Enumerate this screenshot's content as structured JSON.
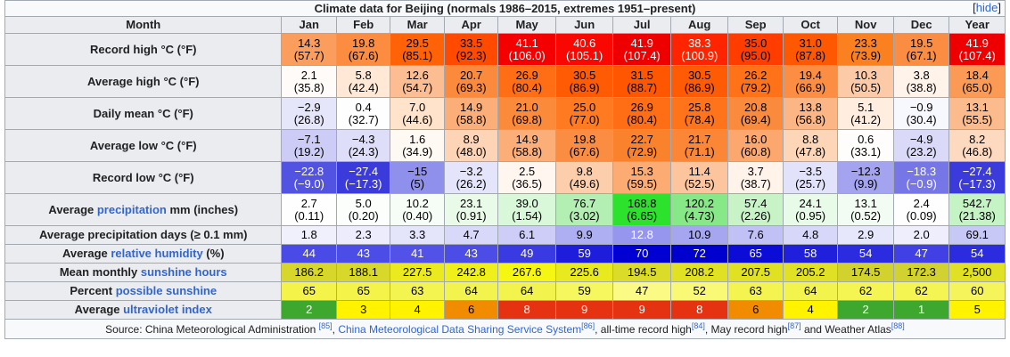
{
  "caption": "Climate data for Beijing (normals 1986–2015, extremes 1951–present)",
  "hide_label": "hide",
  "header": {
    "month_label": "Month",
    "months": [
      "Jan",
      "Feb",
      "Mar",
      "Apr",
      "May",
      "Jun",
      "Jul",
      "Aug",
      "Sep",
      "Oct",
      "Nov",
      "Dec",
      "Year"
    ]
  },
  "rows": [
    {
      "label": "Record high °C (°F)",
      "lines": 2,
      "cells": [
        {
          "a": "14.3",
          "b": "(57.7)",
          "bg": "#fb9d5d",
          "fg": "#000000"
        },
        {
          "a": "19.8",
          "b": "(67.6)",
          "bg": "#fb8c40",
          "fg": "#000000"
        },
        {
          "a": "29.5",
          "b": "(85.1)",
          "bg": "#ff6207",
          "fg": "#000000"
        },
        {
          "a": "33.5",
          "b": "(92.3)",
          "bg": "#ff4a00",
          "fg": "#000000"
        },
        {
          "a": "41.1",
          "b": "(106.0)",
          "bg": "#f40000",
          "fg": "#ffffff"
        },
        {
          "a": "40.6",
          "b": "(105.1)",
          "bg": "#f80800",
          "fg": "#ffffff"
        },
        {
          "a": "41.9",
          "b": "(107.4)",
          "bg": "#ef0000",
          "fg": "#ffffff"
        },
        {
          "a": "38.3",
          "b": "(100.9)",
          "bg": "#ff2400",
          "fg": "#ffffff"
        },
        {
          "a": "35.0",
          "b": "(95.0)",
          "bg": "#ff3d00",
          "fg": "#000000"
        },
        {
          "a": "31.0",
          "b": "(87.8)",
          "bg": "#ff5802",
          "fg": "#000000"
        },
        {
          "a": "23.3",
          "b": "(73.9)",
          "bg": "#fb8020",
          "fg": "#000000"
        },
        {
          "a": "19.5",
          "b": "(67.1)",
          "bg": "#fb8d42",
          "fg": "#000000"
        },
        {
          "a": "41.9",
          "b": "(107.4)",
          "bg": "#ef0000",
          "fg": "#ffffff"
        }
      ]
    },
    {
      "label": "Average high °C (°F)",
      "lines": 2,
      "cells": [
        {
          "a": "2.1",
          "b": "(35.8)",
          "bg": "#fffbf8",
          "fg": "#000000"
        },
        {
          "a": "5.8",
          "b": "(42.4)",
          "bg": "#ffe9d6",
          "fg": "#000000"
        },
        {
          "a": "12.6",
          "b": "(54.7)",
          "bg": "#fcbd92",
          "fg": "#000000"
        },
        {
          "a": "20.7",
          "b": "(69.3)",
          "bg": "#fb8a3c",
          "fg": "#000000"
        },
        {
          "a": "26.9",
          "b": "(80.4)",
          "bg": "#ff6e15",
          "fg": "#000000"
        },
        {
          "a": "30.5",
          "b": "(86.9)",
          "bg": "#ff5a04",
          "fg": "#000000"
        },
        {
          "a": "31.5",
          "b": "(88.7)",
          "bg": "#ff5602",
          "fg": "#000000"
        },
        {
          "a": "30.5",
          "b": "(86.9)",
          "bg": "#ff5a04",
          "fg": "#000000"
        },
        {
          "a": "26.2",
          "b": "(79.2)",
          "bg": "#ff7218",
          "fg": "#000000"
        },
        {
          "a": "19.4",
          "b": "(66.9)",
          "bg": "#fb8e43",
          "fg": "#000000"
        },
        {
          "a": "10.3",
          "b": "(50.5)",
          "bg": "#fdcaa7",
          "fg": "#000000"
        },
        {
          "a": "3.8",
          "b": "(38.8)",
          "bg": "#fff3ea",
          "fg": "#000000"
        },
        {
          "a": "18.4",
          "b": "(65.0)",
          "bg": "#fb9a55",
          "fg": "#000000"
        }
      ]
    },
    {
      "label": "Daily mean °C (°F)",
      "lines": 2,
      "cells": [
        {
          "a": "−2.9",
          "b": "(26.8)",
          "bg": "#e6e6fb",
          "fg": "#000000"
        },
        {
          "a": "0.4",
          "b": "(32.7)",
          "bg": "#fefefe",
          "fg": "#000000"
        },
        {
          "a": "7.0",
          "b": "(44.6)",
          "bg": "#ffe3ca",
          "fg": "#000000"
        },
        {
          "a": "14.9",
          "b": "(58.8)",
          "bg": "#fcae78",
          "fg": "#000000"
        },
        {
          "a": "21.0",
          "b": "(69.8)",
          "bg": "#fb8a3b",
          "fg": "#000000"
        },
        {
          "a": "25.0",
          "b": "(77.0)",
          "bg": "#ff7a20",
          "fg": "#000000"
        },
        {
          "a": "26.9",
          "b": "(80.4)",
          "bg": "#ff6e15",
          "fg": "#000000"
        },
        {
          "a": "25.8",
          "b": "(78.4)",
          "bg": "#ff741a",
          "fg": "#000000"
        },
        {
          "a": "20.8",
          "b": "(69.4)",
          "bg": "#fb8b3c",
          "fg": "#000000"
        },
        {
          "a": "13.8",
          "b": "(56.8)",
          "bg": "#fcb584",
          "fg": "#000000"
        },
        {
          "a": "5.1",
          "b": "(41.2)",
          "bg": "#ffeddf",
          "fg": "#000000"
        },
        {
          "a": "−0.9",
          "b": "(30.4)",
          "bg": "#f7f7fe",
          "fg": "#000000"
        },
        {
          "a": "13.1",
          "b": "(55.5)",
          "bg": "#fcbb8d",
          "fg": "#000000"
        }
      ]
    },
    {
      "label": "Average low °C (°F)",
      "lines": 2,
      "cells": [
        {
          "a": "−7.1",
          "b": "(19.2)",
          "bg": "#ccccf7",
          "fg": "#000000"
        },
        {
          "a": "−4.3",
          "b": "(24.3)",
          "bg": "#dedef9",
          "fg": "#000000"
        },
        {
          "a": "1.6",
          "b": "(34.9)",
          "bg": "#fff9f4",
          "fg": "#000000"
        },
        {
          "a": "8.9",
          "b": "(48.0)",
          "bg": "#fdd4b6",
          "fg": "#000000"
        },
        {
          "a": "14.9",
          "b": "(58.8)",
          "bg": "#fcae78",
          "fg": "#000000"
        },
        {
          "a": "19.8",
          "b": "(67.6)",
          "bg": "#fb8d42",
          "fg": "#000000"
        },
        {
          "a": "22.7",
          "b": "(72.9)",
          "bg": "#fb822c",
          "fg": "#000000"
        },
        {
          "a": "21.7",
          "b": "(71.1)",
          "bg": "#fb8636",
          "fg": "#000000"
        },
        {
          "a": "16.0",
          "b": "(60.8)",
          "bg": "#fca76d",
          "fg": "#000000"
        },
        {
          "a": "8.8",
          "b": "(47.8)",
          "bg": "#fdd5b7",
          "fg": "#000000"
        },
        {
          "a": "0.6",
          "b": "(33.1)",
          "bg": "#fffdfc",
          "fg": "#000000"
        },
        {
          "a": "−4.9",
          "b": "(23.2)",
          "bg": "#dadaf8",
          "fg": "#000000"
        },
        {
          "a": "8.2",
          "b": "(46.8)",
          "bg": "#fdd9bf",
          "fg": "#000000"
        }
      ]
    },
    {
      "label": "Record low °C (°F)",
      "lines": 2,
      "cells": [
        {
          "a": "−22.8",
          "b": "(−9.0)",
          "bg": "#5353e2",
          "fg": "#ffffff"
        },
        {
          "a": "−27.4",
          "b": "(−17.3)",
          "bg": "#3b3bdc",
          "fg": "#ffffff"
        },
        {
          "a": "−15",
          "b": "(5)",
          "bg": "#8f8fec",
          "fg": "#000000"
        },
        {
          "a": "−3.2",
          "b": "(26.2)",
          "bg": "#e4e4fb",
          "fg": "#000000"
        },
        {
          "a": "2.5",
          "b": "(36.5)",
          "bg": "#fff6ef",
          "fg": "#000000"
        },
        {
          "a": "9.8",
          "b": "(49.6)",
          "bg": "#fdceac",
          "fg": "#000000"
        },
        {
          "a": "15.3",
          "b": "(59.5)",
          "bg": "#fcab73",
          "fg": "#000000"
        },
        {
          "a": "11.4",
          "b": "(52.5)",
          "bg": "#fdc59e",
          "fg": "#000000"
        },
        {
          "a": "3.7",
          "b": "(38.7)",
          "bg": "#fff3ea",
          "fg": "#000000"
        },
        {
          "a": "−3.5",
          "b": "(25.7)",
          "bg": "#e2e2fa",
          "fg": "#000000"
        },
        {
          "a": "−12.3",
          "b": "(9.9)",
          "bg": "#a3a3f0",
          "fg": "#000000"
        },
        {
          "a": "−18.3",
          "b": "(−0.9)",
          "bg": "#7676e7",
          "fg": "#ffffff"
        },
        {
          "a": "−27.4",
          "b": "(−17.3)",
          "bg": "#3b3bdc",
          "fg": "#ffffff"
        }
      ]
    },
    {
      "label_prefix": "Average ",
      "label_link": "precipitation",
      "label_suffix": " mm (inches)",
      "lines": 2,
      "cells": [
        {
          "a": "2.7",
          "b": "(0.11)",
          "bg": "#fdfefd",
          "fg": "#000000"
        },
        {
          "a": "5.0",
          "b": "(0.20)",
          "bg": "#fbfefb",
          "fg": "#000000"
        },
        {
          "a": "10.2",
          "b": "(0.40)",
          "bg": "#f6fdf6",
          "fg": "#000000"
        },
        {
          "a": "23.1",
          "b": "(0.91)",
          "bg": "#e9fae9",
          "fg": "#000000"
        },
        {
          "a": "39.0",
          "b": "(1.54)",
          "bg": "#d9f7d9",
          "fg": "#000000"
        },
        {
          "a": "76.7",
          "b": "(3.02)",
          "bg": "#b3efb3",
          "fg": "#000000"
        },
        {
          "a": "168.8",
          "b": "(6.65)",
          "bg": "#2ce22c",
          "fg": "#000000"
        },
        {
          "a": "120.2",
          "b": "(4.73)",
          "bg": "#87e887",
          "fg": "#000000"
        },
        {
          "a": "57.4",
          "b": "(2.26)",
          "bg": "#c7f3c7",
          "fg": "#000000"
        },
        {
          "a": "24.1",
          "b": "(0.95)",
          "bg": "#e8fae8",
          "fg": "#000000"
        },
        {
          "a": "13.1",
          "b": "(0.52)",
          "bg": "#f3fcf3",
          "fg": "#000000"
        },
        {
          "a": "2.4",
          "b": "(0.09)",
          "bg": "#fdfefd",
          "fg": "#000000"
        },
        {
          "a": "542.7",
          "b": "(21.38)",
          "bg": "#c4f3c4",
          "fg": "#000000"
        }
      ]
    },
    {
      "label": "Average precipitation days (≥ 0.1 mm)",
      "lines": 1,
      "cells": [
        {
          "a": "1.8",
          "bg": "#f0f0fd",
          "fg": "#000000"
        },
        {
          "a": "2.3",
          "bg": "#ececfc",
          "fg": "#000000"
        },
        {
          "a": "3.3",
          "bg": "#e4e4fb",
          "fg": "#000000"
        },
        {
          "a": "4.7",
          "bg": "#d8d8f9",
          "fg": "#000000"
        },
        {
          "a": "6.1",
          "bg": "#cdcdf7",
          "fg": "#000000"
        },
        {
          "a": "9.9",
          "bg": "#aeaef2",
          "fg": "#000000"
        },
        {
          "a": "12.8",
          "bg": "#9696ee",
          "fg": "#ffffff"
        },
        {
          "a": "10.9",
          "bg": "#a6a6f0",
          "fg": "#000000"
        },
        {
          "a": "7.6",
          "bg": "#c1c1f5",
          "fg": "#000000"
        },
        {
          "a": "4.8",
          "bg": "#d7d7f9",
          "fg": "#000000"
        },
        {
          "a": "2.9",
          "bg": "#e7e7fb",
          "fg": "#000000"
        },
        {
          "a": "2.0",
          "bg": "#eeeefc",
          "fg": "#000000"
        },
        {
          "a": "69.1",
          "bg": "#c8c8f6",
          "fg": "#000000"
        }
      ]
    },
    {
      "label_prefix": "Average ",
      "label_link": "relative humidity",
      "label_suffix": " (%)",
      "lines": 1,
      "cells": [
        {
          "a": "44",
          "bg": "#4a4ae6",
          "fg": "#ffffff"
        },
        {
          "a": "43",
          "bg": "#4c4ce7",
          "fg": "#ffffff"
        },
        {
          "a": "41",
          "bg": "#5252e8",
          "fg": "#ffffff"
        },
        {
          "a": "43",
          "bg": "#4c4ce7",
          "fg": "#ffffff"
        },
        {
          "a": "49",
          "bg": "#3a3ae2",
          "fg": "#ffffff"
        },
        {
          "a": "59",
          "bg": "#1d1ddb",
          "fg": "#ffffff"
        },
        {
          "a": "70",
          "bg": "#0000d2",
          "fg": "#ffffff"
        },
        {
          "a": "72",
          "bg": "#0000ce",
          "fg": "#ffffff"
        },
        {
          "a": "65",
          "bg": "#0c0cd7",
          "fg": "#ffffff"
        },
        {
          "a": "58",
          "bg": "#2020dc",
          "fg": "#ffffff"
        },
        {
          "a": "54",
          "bg": "#2b2bdf",
          "fg": "#ffffff"
        },
        {
          "a": "47",
          "bg": "#4040e4",
          "fg": "#ffffff"
        },
        {
          "a": "54",
          "bg": "#2b2bdf",
          "fg": "#ffffff"
        }
      ]
    },
    {
      "label_prefix": "Mean monthly ",
      "label_link": "sunshine hours",
      "label_suffix": "",
      "lines": 1,
      "cells": [
        {
          "a": "186.2",
          "bg": "#d7d72b",
          "fg": "#000000"
        },
        {
          "a": "188.1",
          "bg": "#d8d82b",
          "fg": "#000000"
        },
        {
          "a": "227.5",
          "bg": "#eaea1e",
          "fg": "#000000"
        },
        {
          "a": "242.8",
          "bg": "#efef1a",
          "fg": "#000000"
        },
        {
          "a": "267.6",
          "bg": "#f6f613",
          "fg": "#000000"
        },
        {
          "a": "225.6",
          "bg": "#e9e91f",
          "fg": "#000000"
        },
        {
          "a": "194.5",
          "bg": "#dbdb29",
          "fg": "#000000"
        },
        {
          "a": "208.2",
          "bg": "#e1e124",
          "fg": "#000000"
        },
        {
          "a": "207.5",
          "bg": "#e1e124",
          "fg": "#000000"
        },
        {
          "a": "205.2",
          "bg": "#e0e025",
          "fg": "#000000"
        },
        {
          "a": "174.5",
          "bg": "#d2d22f",
          "fg": "#000000"
        },
        {
          "a": "172.3",
          "bg": "#d1d130",
          "fg": "#000000"
        },
        {
          "a": "2,500",
          "bg": "#e0e025",
          "fg": "#000000"
        }
      ]
    },
    {
      "label_prefix": "Percent ",
      "label_link": "possible sunshine",
      "label_suffix": "",
      "lines": 1,
      "cells": [
        {
          "a": "65",
          "bg": "#f3f34a",
          "fg": "#000000"
        },
        {
          "a": "65",
          "bg": "#f3f34a",
          "fg": "#000000"
        },
        {
          "a": "63",
          "bg": "#f4f450",
          "fg": "#000000"
        },
        {
          "a": "64",
          "bg": "#f3f34d",
          "fg": "#000000"
        },
        {
          "a": "64",
          "bg": "#f3f34d",
          "fg": "#000000"
        },
        {
          "a": "59",
          "bg": "#f6f65f",
          "fg": "#000000"
        },
        {
          "a": "47",
          "bg": "#fafa85",
          "fg": "#000000"
        },
        {
          "a": "52",
          "bg": "#f9f975",
          "fg": "#000000"
        },
        {
          "a": "63",
          "bg": "#f4f450",
          "fg": "#000000"
        },
        {
          "a": "64",
          "bg": "#f3f34d",
          "fg": "#000000"
        },
        {
          "a": "62",
          "bg": "#f4f453",
          "fg": "#000000"
        },
        {
          "a": "62",
          "bg": "#f4f453",
          "fg": "#000000"
        },
        {
          "a": "60",
          "bg": "#f5f55b",
          "fg": "#000000"
        }
      ]
    },
    {
      "label_prefix": "Average ",
      "label_link": "ultraviolet index",
      "label_suffix": "",
      "lines": 1,
      "cells": [
        {
          "a": "2",
          "bg": "#3ea72d",
          "fg": "#ffffff"
        },
        {
          "a": "3",
          "bg": "#fff300",
          "fg": "#000000"
        },
        {
          "a": "4",
          "bg": "#fff300",
          "fg": "#000000"
        },
        {
          "a": "6",
          "bg": "#f18b00",
          "fg": "#000000"
        },
        {
          "a": "8",
          "bg": "#e53210",
          "fg": "#ffffff"
        },
        {
          "a": "9",
          "bg": "#e53210",
          "fg": "#ffffff"
        },
        {
          "a": "9",
          "bg": "#e53210",
          "fg": "#ffffff"
        },
        {
          "a": "8",
          "bg": "#e53210",
          "fg": "#ffffff"
        },
        {
          "a": "6",
          "bg": "#f18b00",
          "fg": "#000000"
        },
        {
          "a": "4",
          "bg": "#fff300",
          "fg": "#000000"
        },
        {
          "a": "2",
          "bg": "#3ea72d",
          "fg": "#ffffff"
        },
        {
          "a": "1",
          "bg": "#3ea72d",
          "fg": "#ffffff"
        },
        {
          "a": "5",
          "bg": "#fff300",
          "fg": "#000000"
        }
      ]
    }
  ],
  "source": {
    "prefix": "Source: China Meteorological Administration ",
    "ref1": "[85]",
    "sep1": ", ",
    "link1": "China Meteorological Data Sharing Service System",
    "ref2": "[86]",
    "sep2": ", all-time record high",
    "ref3": "[84]",
    "sep3": ", May record high",
    "ref4": "[87]",
    "sep4": " and Weather Atlas",
    "ref5": "[88]"
  }
}
